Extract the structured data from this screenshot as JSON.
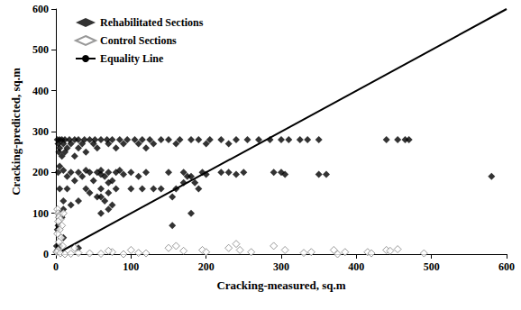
{
  "chart_data": {
    "type": "scatter",
    "x_label": "Cracking-measured, sq.m",
    "y_label": "Cracking-predicted, sq.m",
    "xlim": [
      0,
      600
    ],
    "ylim": [
      0,
      600
    ],
    "xticks": [
      0,
      100,
      200,
      300,
      400,
      500,
      600
    ],
    "yticks": [
      0,
      100,
      200,
      300,
      400,
      500,
      600
    ],
    "grid": false,
    "legend": "upper left",
    "series": [
      {
        "name": "Rehabilitated Sections",
        "type": "scatter",
        "color": "#000000",
        "marker": "diamond",
        "x": [
          2,
          5,
          8,
          12,
          18,
          25,
          30,
          38,
          45,
          52,
          60,
          68,
          75,
          85,
          95,
          105,
          115,
          125,
          140,
          150,
          165,
          180,
          190,
          205,
          220,
          240,
          255,
          270,
          285,
          300,
          310,
          325,
          335,
          350,
          440,
          455,
          465,
          470,
          3,
          10,
          20,
          35,
          50,
          70,
          90,
          110,
          130,
          160,
          200,
          230,
          5,
          15,
          30,
          55,
          80,
          120,
          4,
          12,
          40,
          8,
          25,
          5,
          10,
          40,
          60,
          85,
          3,
          20,
          30,
          45,
          55,
          70,
          80,
          100,
          120,
          150,
          170,
          195,
          220,
          230,
          250,
          290,
          300,
          60,
          90,
          200,
          240,
          305,
          350,
          360,
          15,
          35,
          65,
          110,
          175,
          180,
          580,
          25,
          50,
          75,
          70,
          170,
          185,
          5,
          15,
          40,
          60,
          80,
          100,
          115,
          130,
          140,
          160,
          190,
          45,
          70,
          55,
          60,
          155,
          10,
          30,
          65,
          20,
          75,
          10,
          70,
          5,
          60,
          180,
          8,
          3,
          155,
          2,
          10,
          1,
          5,
          30,
          2,
          0.5
        ],
        "values": [
          280,
          280,
          280,
          280,
          280,
          280,
          280,
          280,
          280,
          280,
          280,
          280,
          280,
          280,
          280,
          280,
          280,
          280,
          280,
          280,
          280,
          280,
          280,
          280,
          280,
          280,
          280,
          280,
          280,
          280,
          280,
          280,
          280,
          280,
          280,
          280,
          280,
          280,
          270,
          270,
          270,
          270,
          270,
          270,
          270,
          270,
          270,
          270,
          270,
          270,
          260,
          260,
          260,
          260,
          260,
          260,
          250,
          250,
          250,
          240,
          240,
          215,
          205,
          205,
          205,
          205,
          200,
          200,
          200,
          200,
          200,
          200,
          200,
          200,
          200,
          200,
          200,
          200,
          200,
          200,
          200,
          200,
          200,
          195,
          195,
          195,
          195,
          195,
          195,
          195,
          190,
          190,
          190,
          190,
          190,
          190,
          190,
          180,
          180,
          180,
          175,
          175,
          175,
          160,
          160,
          160,
          160,
          160,
          160,
          160,
          160,
          160,
          160,
          160,
          150,
          150,
          140,
          140,
          140,
          130,
          130,
          130,
          120,
          120,
          110,
          110,
          100,
          100,
          100,
          90,
          70,
          70,
          60,
          40,
          20,
          20,
          15,
          10,
          5
        ]
      },
      {
        "name": "Control Sections",
        "type": "scatter",
        "color": "#808080",
        "marker": "diamond-open",
        "x": [
          2,
          3,
          5,
          4,
          6,
          3,
          8,
          5,
          2,
          10,
          7,
          4,
          9,
          3,
          1,
          6,
          12,
          20,
          30,
          45,
          60,
          75,
          90,
          100,
          110,
          120,
          150,
          160,
          170,
          195,
          200,
          230,
          240,
          245,
          260,
          290,
          305,
          330,
          340,
          370,
          375,
          385,
          415,
          420,
          440,
          445,
          455,
          490,
          25,
          70
        ],
        "values": [
          110,
          100,
          95,
          90,
          85,
          80,
          70,
          60,
          50,
          100,
          40,
          30,
          20,
          10,
          5,
          2,
          0,
          1,
          3,
          2,
          1,
          5,
          0,
          10,
          3,
          2,
          15,
          20,
          8,
          10,
          5,
          15,
          25,
          10,
          5,
          20,
          10,
          3,
          5,
          10,
          0,
          5,
          5,
          2,
          10,
          8,
          12,
          2,
          15,
          8
        ]
      },
      {
        "name": "Equality Line",
        "type": "line",
        "color": "#000000",
        "line_style": "solid",
        "x": [
          0,
          600
        ],
        "values": [
          0,
          600
        ]
      }
    ]
  }
}
